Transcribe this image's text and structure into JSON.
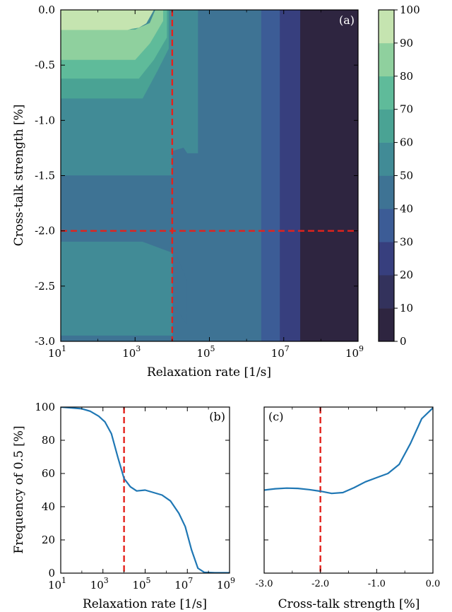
{
  "chart_data": [
    {
      "type": "heatmap",
      "panel_label": "(a)",
      "xlabel": "Relaxation rate [1/s]",
      "ylabel": "Cross-talk strength [%]",
      "x_scale": "log",
      "x_log_range": [
        1,
        9
      ],
      "x_ticks": [
        {
          "exp": 1,
          "label": "10",
          "sup": "1"
        },
        {
          "exp": 3,
          "label": "10",
          "sup": "3"
        },
        {
          "exp": 5,
          "label": "10",
          "sup": "5"
        },
        {
          "exp": 7,
          "label": "10",
          "sup": "7"
        },
        {
          "exp": 9,
          "label": "10",
          "sup": "9"
        }
      ],
      "ylim": [
        -3.0,
        0.0
      ],
      "y_ticks": [
        {
          "v": 0.0,
          "label": "0.0"
        },
        {
          "v": -0.5,
          "label": "-0.5"
        },
        {
          "v": -1.0,
          "label": "-1.0"
        },
        {
          "v": -1.5,
          "label": "-1.5"
        },
        {
          "v": -2.0,
          "label": "-2.0"
        },
        {
          "v": -2.5,
          "label": "-2.5"
        },
        {
          "v": -3.0,
          "label": "-3.0"
        }
      ],
      "colorbar": {
        "levels": [
          0,
          10,
          20,
          30,
          40,
          50,
          60,
          70,
          80,
          90,
          100
        ],
        "colors": [
          "#2e2540",
          "#33325c",
          "#373f7e",
          "#3c5c96",
          "#3e7394",
          "#418b96",
          "#4aa394",
          "#5fbb9a",
          "#8fd09e",
          "#c5e4b0"
        ],
        "tick_labels": [
          "0",
          "10",
          "20",
          "30",
          "40",
          "50",
          "60",
          "70",
          "80",
          "90",
          "100"
        ]
      },
      "reference_lines": {
        "x_log": 4,
        "y": -2.0,
        "color": "#e3221c"
      },
      "regions": [
        {
          "level": 5,
          "polygon": [
            [
              1,
              0
            ],
            [
              4.7,
              0
            ],
            [
              4.7,
              -1.3
            ],
            [
              4.4,
              -1.3
            ],
            [
              4.3,
              -1.25
            ],
            [
              4.0,
              -1.28
            ],
            [
              4.0,
              -1.5
            ],
            [
              1,
              -1.5
            ]
          ]
        },
        {
          "level": 4,
          "polygon": [
            [
              4.7,
              0
            ],
            [
              6.5,
              0
            ],
            [
              6.5,
              -3
            ],
            [
              4.0,
              -3
            ],
            [
              4.0,
              -2.65
            ],
            [
              4.4,
              -2.85
            ],
            [
              4.4,
              -2.45
            ],
            [
              4.1,
              -2.2
            ],
            [
              1,
              -2.2
            ],
            [
              1,
              -1.5
            ],
            [
              4.0,
              -1.5
            ],
            [
              4.0,
              -1.28
            ],
            [
              4.3,
              -1.25
            ],
            [
              4.4,
              -1.3
            ],
            [
              4.7,
              -1.3
            ]
          ]
        },
        {
          "level": 5,
          "polygon": [
            [
              1,
              -2.1
            ],
            [
              3.2,
              -2.1
            ],
            [
              4.0,
              -2.2
            ],
            [
              4.0,
              -2.95
            ],
            [
              1,
              -2.95
            ]
          ]
        },
        {
          "level": 3,
          "polygon": [
            [
              6.4,
              0
            ],
            [
              7.2,
              0
            ],
            [
              7.2,
              -3
            ],
            [
              6.4,
              -3
            ]
          ]
        },
        {
          "level": 2,
          "polygon": [
            [
              6.9,
              0
            ],
            [
              7.5,
              0
            ],
            [
              7.5,
              -3
            ],
            [
              6.9,
              -3
            ]
          ]
        },
        {
          "level": 0,
          "polygon": [
            [
              7.45,
              0
            ],
            [
              9,
              0
            ],
            [
              9,
              -3
            ],
            [
              7.45,
              -3
            ]
          ]
        },
        {
          "level": 6,
          "polygon": [
            [
              1,
              -0.15
            ],
            [
              3.2,
              -0.15
            ],
            [
              3.55,
              -0.1
            ],
            [
              3.7,
              0
            ],
            [
              3.9,
              0
            ],
            [
              3.9,
              -0.35
            ],
            [
              3.6,
              -0.55
            ],
            [
              3.2,
              -0.8
            ],
            [
              1,
              -0.8
            ]
          ]
        },
        {
          "level": 7,
          "polygon": [
            [
              1,
              -0.28
            ],
            [
              3.0,
              -0.28
            ],
            [
              3.5,
              -0.18
            ],
            [
              3.6,
              0
            ],
            [
              3.85,
              0
            ],
            [
              3.85,
              -0.25
            ],
            [
              3.5,
              -0.45
            ],
            [
              3.1,
              -0.62
            ],
            [
              1,
              -0.62
            ]
          ]
        },
        {
          "level": 8,
          "polygon": [
            [
              1,
              -0.18
            ],
            [
              3.0,
              -0.18
            ],
            [
              3.4,
              -0.12
            ],
            [
              3.55,
              0
            ],
            [
              3.75,
              0
            ],
            [
              3.75,
              -0.1
            ],
            [
              3.4,
              -0.3
            ],
            [
              3.0,
              -0.45
            ],
            [
              1,
              -0.45
            ]
          ]
        },
        {
          "level": 9,
          "polygon": [
            [
              1,
              0
            ],
            [
              3.5,
              0
            ],
            [
              3.3,
              -0.12
            ],
            [
              3.1,
              -0.16
            ],
            [
              2.9,
              -0.17
            ],
            [
              2.8,
              -0.18
            ],
            [
              1,
              -0.18
            ]
          ]
        },
        {
          "level": 5,
          "polygon": [
            [
              1,
              -2.95
            ],
            [
              4.0,
              -2.95
            ],
            [
              4.0,
              -3.0
            ],
            [
              1,
              -3.0
            ]
          ]
        },
        {
          "level": 4,
          "polygon": [
            [
              1,
              -2.95
            ],
            [
              4.0,
              -2.95
            ],
            [
              4.0,
              -3.0
            ],
            [
              1,
              -3.0
            ]
          ]
        }
      ]
    },
    {
      "type": "line",
      "panel_label": "(b)",
      "xlabel": "Relaxation rate [1/s]",
      "ylabel": "Frequency of 0.5 [%]",
      "x_scale": "log",
      "x_log_range": [
        1,
        9
      ],
      "x_ticks": [
        {
          "exp": 1,
          "label": "10",
          "sup": "1"
        },
        {
          "exp": 3,
          "label": "10",
          "sup": "3"
        },
        {
          "exp": 5,
          "label": "10",
          "sup": "5"
        },
        {
          "exp": 7,
          "label": "10",
          "sup": "7"
        },
        {
          "exp": 9,
          "label": "10",
          "sup": "9"
        }
      ],
      "ylim": [
        0,
        100
      ],
      "y_ticks": [
        {
          "v": 0,
          "label": "0"
        },
        {
          "v": 20,
          "label": "20"
        },
        {
          "v": 40,
          "label": "40"
        },
        {
          "v": 60,
          "label": "60"
        },
        {
          "v": 80,
          "label": "80"
        },
        {
          "v": 100,
          "label": "100"
        }
      ],
      "reference_line_x_log": 4,
      "line_color": "#1f77b4",
      "series": [
        {
          "x_log": [
            1.0,
            1.5,
            2.0,
            2.4,
            2.8,
            3.1,
            3.4,
            3.7,
            4.0,
            4.3,
            4.6,
            5.0,
            5.4,
            5.8,
            6.2,
            6.6,
            6.9,
            7.2,
            7.5,
            7.8,
            8.3,
            9.0
          ],
          "values": [
            100,
            99.5,
            99,
            97.5,
            94.5,
            91,
            84,
            70,
            57,
            52,
            49.5,
            50,
            48.5,
            47,
            43.5,
            36,
            28,
            14,
            3,
            0.5,
            0.2,
            0.2
          ]
        }
      ]
    },
    {
      "type": "line",
      "panel_label": "(c)",
      "xlabel": "Cross-talk strength [%]",
      "xlim": [
        -3.0,
        0.0
      ],
      "x_ticks": [
        {
          "v": -3.0,
          "label": "-3.0"
        },
        {
          "v": -2.0,
          "label": "-2.0"
        },
        {
          "v": -1.0,
          "label": "-1.0"
        },
        {
          "v": 0.0,
          "label": "0.0"
        }
      ],
      "ylim": [
        0,
        100
      ],
      "reference_line_x": -2.0,
      "line_color": "#1f77b4",
      "series": [
        {
          "x": [
            -3.0,
            -2.8,
            -2.6,
            -2.4,
            -2.2,
            -2.0,
            -1.8,
            -1.6,
            -1.4,
            -1.2,
            -1.0,
            -0.8,
            -0.6,
            -0.4,
            -0.2,
            0.0
          ],
          "values": [
            50,
            50.8,
            51.2,
            51,
            50.3,
            49.3,
            48,
            48.5,
            51.5,
            55,
            57.5,
            60,
            65.5,
            78,
            93,
            99.5
          ]
        }
      ]
    }
  ]
}
